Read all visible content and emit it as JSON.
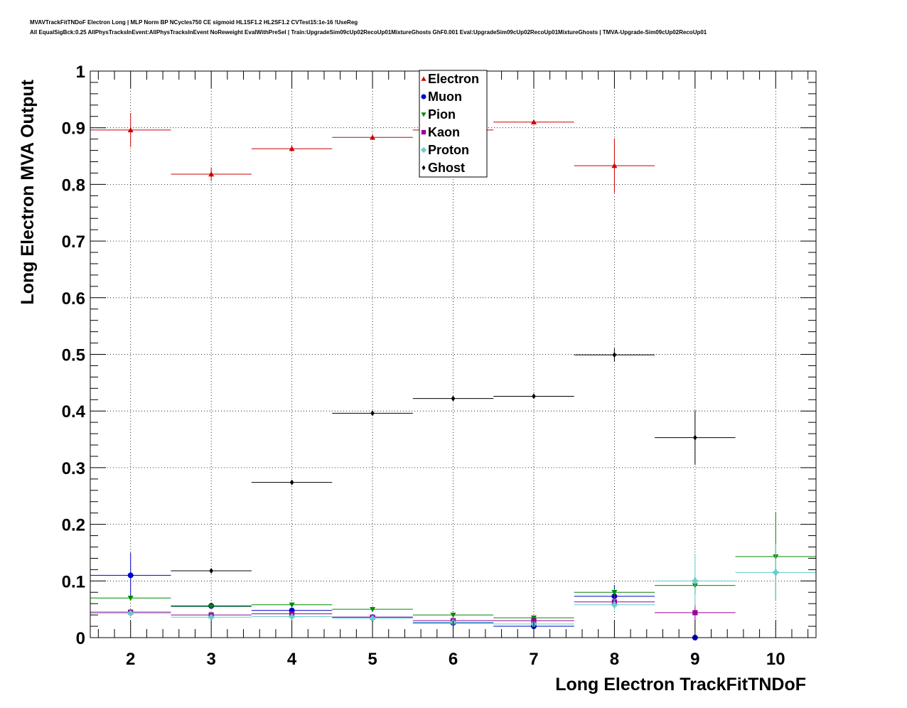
{
  "header": {
    "line1": "MVAVTrackFitTNDoF Electron Long | MLP Norm BP NCycles750 CE sigmoid HL1SF1.2 HL2SF1.2 CVTest15:1e-16 !UseReg",
    "line2": "All EqualSigBck:0.25 AllPhysTracksInEvent:AllPhysTracksInEvent NoReweight EvalWithPreSel | Train:UpgradeSim09cUp02RecoUp01MixtureGhosts GhF0.001 Eval:UpgradeSim09cUp02RecoUp01MixtureGhosts | TMVA-Upgrade-Sim09cUp02RecoUp01"
  },
  "chart_data": {
    "type": "scatter",
    "xlabel": "Long Electron TrackFitTNDoF",
    "ylabel": "Long Electron MVA Output",
    "xlim": [
      1.5,
      10.5
    ],
    "ylim": [
      0,
      1
    ],
    "x_ticks": [
      "2",
      "3",
      "4",
      "5",
      "6",
      "7",
      "8",
      "9",
      "10"
    ],
    "y_ticks": [
      "0",
      "0.1",
      "0.2",
      "0.3",
      "0.4",
      "0.5",
      "0.6",
      "0.7",
      "0.8",
      "0.9",
      "1"
    ],
    "grid": true,
    "legend_position": "top-center",
    "series": [
      {
        "name": "Electron",
        "color": "#cc0000",
        "marker": "triangle-up",
        "points": [
          {
            "x": 2,
            "y": 0.896,
            "err": 0.03
          },
          {
            "x": 3,
            "y": 0.818,
            "err": 0.012
          },
          {
            "x": 4,
            "y": 0.863,
            "err": 0.005
          },
          {
            "x": 5,
            "y": 0.883,
            "err": 0.004
          },
          {
            "x": 6,
            "y": 0.896,
            "err": 0.004
          },
          {
            "x": 7,
            "y": 0.91,
            "err": 0.004
          },
          {
            "x": 8,
            "y": 0.833,
            "err": 0.048
          }
        ]
      },
      {
        "name": "Muon",
        "color": "#0000cc",
        "marker": "circle",
        "points": [
          {
            "x": 2,
            "y": 0.11,
            "err": 0.04
          },
          {
            "x": 3,
            "y": 0.056,
            "err": 0.006
          },
          {
            "x": 4,
            "y": 0.048,
            "err": 0.005
          },
          {
            "x": 5,
            "y": 0.036,
            "err": 0.003
          },
          {
            "x": 6,
            "y": 0.026,
            "err": 0.003
          },
          {
            "x": 7,
            "y": 0.02,
            "err": 0.004
          },
          {
            "x": 8,
            "y": 0.073,
            "err": 0.02
          },
          {
            "x": 9,
            "y": 0.0,
            "err": 0.0
          }
        ]
      },
      {
        "name": "Pion",
        "color": "#008800",
        "marker": "triangle-down",
        "points": [
          {
            "x": 2,
            "y": 0.07,
            "err": 0.005
          },
          {
            "x": 3,
            "y": 0.055,
            "err": 0.003
          },
          {
            "x": 4,
            "y": 0.058,
            "err": 0.003
          },
          {
            "x": 5,
            "y": 0.05,
            "err": 0.002
          },
          {
            "x": 6,
            "y": 0.04,
            "err": 0.002
          },
          {
            "x": 7,
            "y": 0.035,
            "err": 0.002
          },
          {
            "x": 8,
            "y": 0.08,
            "err": 0.007
          },
          {
            "x": 9,
            "y": 0.092,
            "err": 0.015
          },
          {
            "x": 10,
            "y": 0.143,
            "err": 0.078
          }
        ]
      },
      {
        "name": "Kaon",
        "color": "#990099",
        "marker": "square",
        "points": [
          {
            "x": 2,
            "y": 0.045,
            "err": 0.005
          },
          {
            "x": 3,
            "y": 0.04,
            "err": 0.003
          },
          {
            "x": 4,
            "y": 0.042,
            "err": 0.003
          },
          {
            "x": 5,
            "y": 0.036,
            "err": 0.002
          },
          {
            "x": 6,
            "y": 0.03,
            "err": 0.002
          },
          {
            "x": 7,
            "y": 0.03,
            "err": 0.003
          },
          {
            "x": 8,
            "y": 0.063,
            "err": 0.01
          },
          {
            "x": 9,
            "y": 0.044,
            "err": 0.015
          }
        ]
      },
      {
        "name": "Proton",
        "color": "#66cccc",
        "marker": "cross",
        "points": [
          {
            "x": 2,
            "y": 0.043,
            "err": 0.004
          },
          {
            "x": 3,
            "y": 0.036,
            "err": 0.003
          },
          {
            "x": 4,
            "y": 0.037,
            "err": 0.003
          },
          {
            "x": 5,
            "y": 0.034,
            "err": 0.002
          },
          {
            "x": 6,
            "y": 0.027,
            "err": 0.002
          },
          {
            "x": 7,
            "y": 0.024,
            "err": 0.003
          },
          {
            "x": 8,
            "y": 0.058,
            "err": 0.01
          },
          {
            "x": 9,
            "y": 0.1,
            "err": 0.045
          },
          {
            "x": 10,
            "y": 0.115,
            "err": 0.05
          }
        ]
      },
      {
        "name": "Ghost",
        "color": "#000000",
        "marker": "diamond",
        "points": [
          {
            "x": 3,
            "y": 0.118,
            "err": 0.004
          },
          {
            "x": 4,
            "y": 0.274,
            "err": 0.004
          },
          {
            "x": 5,
            "y": 0.396,
            "err": 0.004
          },
          {
            "x": 6,
            "y": 0.422,
            "err": 0.004
          },
          {
            "x": 7,
            "y": 0.426,
            "err": 0.004
          },
          {
            "x": 8,
            "y": 0.499,
            "err": 0.012
          },
          {
            "x": 9,
            "y": 0.353,
            "err": 0.048
          }
        ]
      }
    ]
  }
}
